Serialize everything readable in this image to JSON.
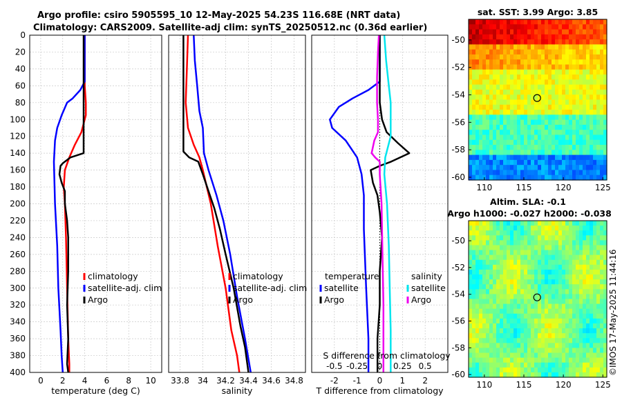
{
  "header": {
    "line1": "Argo profile: csiro 5905595_10 12-May-2025 54.23S 116.68E (NRT data)",
    "line2": "Climatology: CARS2009. Satellite-adj clim: synTS_20250512.nc (0.36d earlier)"
  },
  "credit": "©IMOS 17-May-2025 11:44:16",
  "colors": {
    "climatology": "#ff0000",
    "satellite": "#0000ff",
    "argo": "#000000",
    "sal_satellite": "#00e5ee",
    "sal_argo": "#ee00ee"
  },
  "chart_data": [
    {
      "id": "temperature",
      "type": "line",
      "xlabel": "temperature (deg C)",
      "ylabel": "",
      "xlim": [
        -1,
        11
      ],
      "ylim": [
        400,
        0
      ],
      "xticks": [
        0,
        2,
        4,
        6,
        8,
        10
      ],
      "yticks": [
        0,
        20,
        40,
        60,
        80,
        100,
        120,
        140,
        160,
        180,
        200,
        220,
        240,
        260,
        280,
        300,
        320,
        340,
        360,
        380,
        400
      ],
      "grid": true,
      "legend": {
        "placement": "lower-right",
        "entries": [
          "climatology",
          "satellite-adj. clim",
          "Argo"
        ]
      },
      "series": [
        {
          "name": "climatology",
          "color": "#ff0000",
          "points": [
            [
              4.0,
              0
            ],
            [
              4.0,
              60
            ],
            [
              4.1,
              80
            ],
            [
              4.1,
              95
            ],
            [
              3.7,
              115
            ],
            [
              3.1,
              130
            ],
            [
              2.6,
              145
            ],
            [
              2.2,
              160
            ],
            [
              2.1,
              180
            ],
            [
              2.2,
              200
            ],
            [
              2.3,
              240
            ],
            [
              2.4,
              300
            ],
            [
              2.5,
              360
            ],
            [
              2.6,
              390
            ],
            [
              2.6,
              400
            ]
          ]
        },
        {
          "name": "satellite-adj. clim",
          "color": "#0000ff",
          "points": [
            [
              4.0,
              0
            ],
            [
              4.0,
              55
            ],
            [
              3.6,
              65
            ],
            [
              2.9,
              75
            ],
            [
              2.4,
              80
            ],
            [
              1.9,
              95
            ],
            [
              1.5,
              110
            ],
            [
              1.3,
              125
            ],
            [
              1.2,
              150
            ],
            [
              1.3,
              200
            ],
            [
              1.5,
              250
            ],
            [
              1.6,
              300
            ],
            [
              1.8,
              350
            ],
            [
              1.9,
              380
            ],
            [
              2.0,
              400
            ]
          ]
        },
        {
          "name": "Argo",
          "color": "#000000",
          "points": [
            [
              3.9,
              0
            ],
            [
              3.9,
              60
            ],
            [
              3.9,
              100
            ],
            [
              3.9,
              120
            ],
            [
              3.9,
              140
            ],
            [
              2.7,
              145
            ],
            [
              2.0,
              152
            ],
            [
              1.8,
              155
            ],
            [
              1.7,
              165
            ],
            [
              1.9,
              175
            ],
            [
              2.2,
              185
            ],
            [
              2.2,
              200
            ],
            [
              2.4,
              220
            ],
            [
              2.5,
              240
            ],
            [
              2.5,
              280
            ],
            [
              2.4,
              320
            ],
            [
              2.5,
              360
            ],
            [
              2.4,
              390
            ],
            [
              2.5,
              400
            ]
          ]
        }
      ]
    },
    {
      "id": "salinity",
      "type": "line",
      "xlabel": "salinity",
      "ylabel": "",
      "xlim": [
        33.7,
        34.9
      ],
      "ylim": [
        400,
        0
      ],
      "xticks": [
        33.8,
        34,
        34.2,
        34.4,
        34.6,
        34.8
      ],
      "grid": true,
      "legend": {
        "placement": "lower-right",
        "entries": [
          "climatology",
          "satellite-adj. clim",
          "Argo"
        ]
      },
      "series": [
        {
          "name": "climatology",
          "color": "#ff0000",
          "points": [
            [
              33.87,
              0
            ],
            [
              33.86,
              40
            ],
            [
              33.85,
              80
            ],
            [
              33.87,
              110
            ],
            [
              33.92,
              130
            ],
            [
              33.97,
              145
            ],
            [
              34.0,
              160
            ],
            [
              34.07,
              200
            ],
            [
              34.13,
              250
            ],
            [
              34.2,
              300
            ],
            [
              34.25,
              350
            ],
            [
              34.3,
              380
            ],
            [
              34.32,
              400
            ]
          ]
        },
        {
          "name": "satellite-adj. clim",
          "color": "#0000ff",
          "points": [
            [
              33.92,
              0
            ],
            [
              33.93,
              30
            ],
            [
              33.95,
              60
            ],
            [
              33.97,
              90
            ],
            [
              34.0,
              110
            ],
            [
              34.01,
              140
            ],
            [
              34.05,
              160
            ],
            [
              34.12,
              190
            ],
            [
              34.18,
              220
            ],
            [
              34.24,
              260
            ],
            [
              34.3,
              310
            ],
            [
              34.37,
              360
            ],
            [
              34.42,
              400
            ]
          ]
        },
        {
          "name": "Argo",
          "color": "#000000",
          "points": [
            [
              33.83,
              0
            ],
            [
              33.83,
              50
            ],
            [
              33.83,
              100
            ],
            [
              33.83,
              138
            ],
            [
              33.88,
              145
            ],
            [
              33.96,
              150
            ],
            [
              34.0,
              165
            ],
            [
              34.05,
              185
            ],
            [
              34.1,
              205
            ],
            [
              34.15,
              230
            ],
            [
              34.2,
              260
            ],
            [
              34.27,
              300
            ],
            [
              34.33,
              345
            ],
            [
              34.37,
              370
            ],
            [
              34.4,
              400
            ]
          ]
        }
      ]
    },
    {
      "id": "differences",
      "type": "line",
      "xlabel": "T difference from climatology",
      "xlabel2": "S difference from climatology",
      "xlim": [
        -3,
        3
      ],
      "x2lim": [
        -0.75,
        0.75
      ],
      "ylim": [
        400,
        0
      ],
      "xticks": [
        -2,
        -1,
        0,
        1,
        2
      ],
      "x2ticks": [
        "-0.5",
        "-0.25",
        "0",
        "0.25",
        "0.5"
      ],
      "grid": true,
      "legend": {
        "placement": "lower-center",
        "temperature_title": "temperature",
        "temperature_entries": [
          "satellite",
          "Argo"
        ],
        "salinity_title": "salinity",
        "salinity_entries": [
          "satellite",
          "Argo"
        ]
      },
      "series": [
        {
          "name": "T satellite",
          "color": "#0000ff",
          "points": [
            [
              0,
              0
            ],
            [
              0.0,
              55
            ],
            [
              -0.5,
              65
            ],
            [
              -1.2,
              75
            ],
            [
              -1.8,
              85
            ],
            [
              -2.2,
              100
            ],
            [
              -2.1,
              110
            ],
            [
              -1.5,
              125
            ],
            [
              -1.0,
              145
            ],
            [
              -0.8,
              165
            ],
            [
              -0.7,
              190
            ],
            [
              -0.7,
              230
            ],
            [
              -0.6,
              300
            ],
            [
              -0.5,
              360
            ],
            [
              -0.5,
              400
            ]
          ]
        },
        {
          "name": "T Argo",
          "color": "#000000",
          "points": [
            [
              0,
              0
            ],
            [
              0,
              60
            ],
            [
              0.0,
              80
            ],
            [
              0.1,
              100
            ],
            [
              0.3,
              115
            ],
            [
              0.8,
              128
            ],
            [
              1.3,
              140
            ],
            [
              0.5,
              150
            ],
            [
              0.0,
              155
            ],
            [
              -0.4,
              160
            ],
            [
              -0.3,
              175
            ],
            [
              -0.1,
              190
            ],
            [
              0.0,
              210
            ],
            [
              0.1,
              240
            ],
            [
              0.0,
              280
            ],
            [
              0.0,
              320
            ],
            [
              -0.1,
              360
            ],
            [
              -0.1,
              400
            ]
          ]
        },
        {
          "name": "S satellite",
          "color": "#00e5ee",
          "points": [
            [
              0.05,
              0
            ],
            [
              0.07,
              30
            ],
            [
              0.1,
              60
            ],
            [
              0.12,
              80
            ],
            [
              0.12,
              100
            ],
            [
              0.12,
              120
            ],
            [
              0.06,
              145
            ],
            [
              0.05,
              165
            ],
            [
              0.08,
              200
            ],
            [
              0.1,
              250
            ],
            [
              0.11,
              300
            ],
            [
              0.12,
              350
            ],
            [
              0.12,
              400
            ]
          ]
        },
        {
          "name": "S Argo",
          "color": "#ee00ee",
          "points": [
            [
              -0.01,
              0
            ],
            [
              -0.02,
              20
            ],
            [
              -0.03,
              50
            ],
            [
              -0.03,
              80
            ],
            [
              -0.02,
              100
            ],
            [
              -0.02,
              115
            ],
            [
              -0.06,
              125
            ],
            [
              -0.09,
              140
            ],
            [
              -0.05,
              145
            ],
            [
              0.0,
              150
            ],
            [
              0.0,
              165
            ],
            [
              0.02,
              200
            ],
            [
              0.03,
              260
            ],
            [
              0.04,
              320
            ],
            [
              0.04,
              400
            ]
          ]
        }
      ]
    },
    {
      "id": "sst_map",
      "type": "heatmap",
      "title": "sat. SST: 3.99 Argo: 3.85",
      "xlim": [
        108,
        125.5
      ],
      "ylim": [
        -60.2,
        -48.5
      ],
      "xticks": [
        110,
        115,
        120,
        125
      ],
      "yticks": [
        -50,
        -52,
        -54,
        -56,
        -58,
        -60
      ],
      "marker": {
        "lon": 116.68,
        "lat": -54.23
      }
    },
    {
      "id": "sla_map",
      "type": "heatmap",
      "title": "Altim. SLA: -0.1",
      "subtitle": "Argo h1000: -0.027 h2000: -0.038",
      "xlim": [
        108,
        125.5
      ],
      "ylim": [
        -60.2,
        -48.5
      ],
      "xticks": [
        110,
        115,
        120,
        125
      ],
      "yticks": [
        -50,
        -52,
        -54,
        -56,
        -58,
        -60
      ],
      "marker": {
        "lon": 116.68,
        "lat": -54.23
      }
    }
  ]
}
